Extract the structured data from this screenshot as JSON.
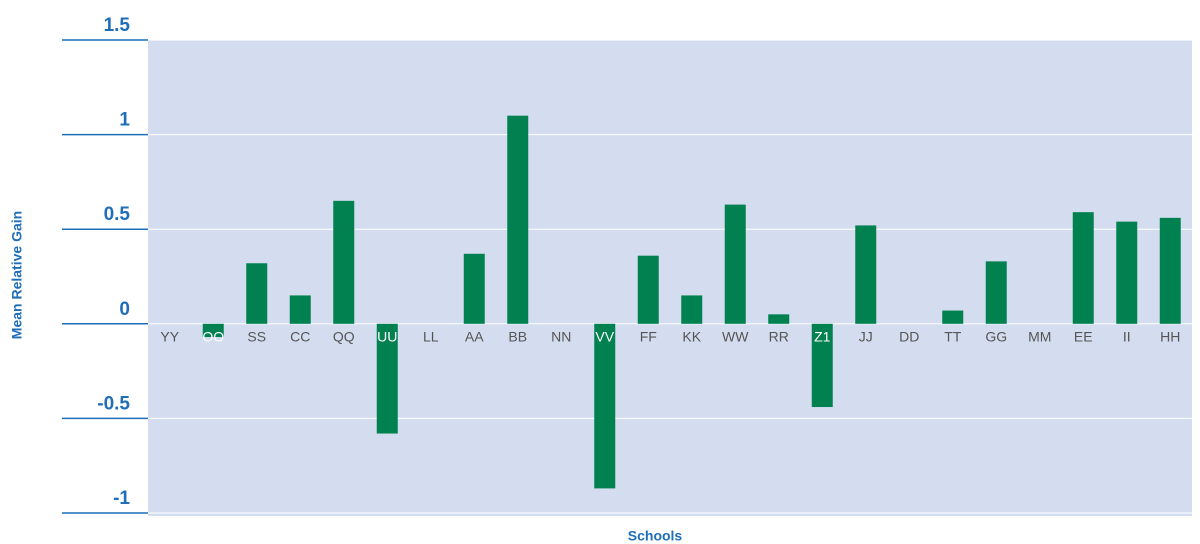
{
  "chart_data": {
    "type": "bar",
    "x_label": "Schools",
    "y_label": "Mean Relative Gain",
    "categories": [
      "YY",
      "OO",
      "SS",
      "CC",
      "QQ",
      "UU",
      "LL",
      "AA",
      "BB",
      "NN",
      "VV",
      "FF",
      "KK",
      "WW",
      "RR",
      "Z1",
      "JJ",
      "DD",
      "TT",
      "GG",
      "MM",
      "EE",
      "II",
      "HH"
    ],
    "values": [
      0,
      -0.07,
      0.32,
      0.15,
      0.65,
      -0.58,
      0,
      0.37,
      1.1,
      0,
      -0.87,
      0.36,
      0.15,
      0.63,
      0.05,
      -0.44,
      0.52,
      0,
      0.07,
      0.33,
      0,
      0.59,
      0.54,
      0.56
    ],
    "color": "#00814f",
    "plot_background": "#d4ddf0",
    "ylim": [
      -1,
      1.5
    ],
    "yticks": [
      1.5,
      1,
      0.5,
      0,
      -0.5,
      -1
    ],
    "grid": true
  }
}
